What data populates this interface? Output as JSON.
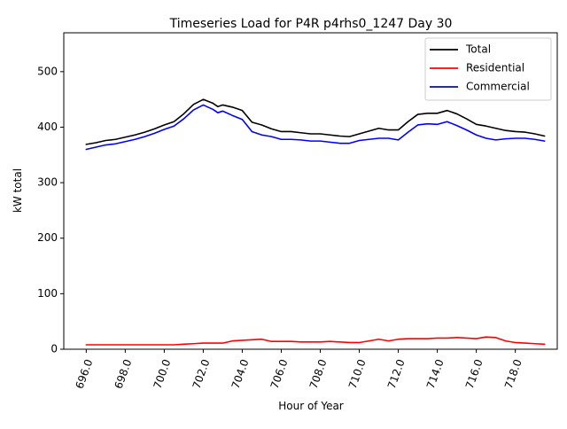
{
  "chart_data": {
    "type": "line",
    "title": "Timeseries Load for P4R p4rhs0_1247  Day 30",
    "xlabel": "Hour of Year",
    "ylabel": "kW total",
    "xlim": [
      694.85,
      720.15
    ],
    "ylim": [
      0,
      570
    ],
    "xticks": [
      696,
      698,
      700,
      702,
      704,
      706,
      708,
      710,
      712,
      714,
      716,
      718
    ],
    "xtick_labels": [
      "696.0",
      "698.0",
      "700.0",
      "702.0",
      "704.0",
      "706.0",
      "708.0",
      "710.0",
      "712.0",
      "714.0",
      "716.0",
      "718.0"
    ],
    "yticks": [
      0,
      100,
      200,
      300,
      400,
      500
    ],
    "ytick_labels": [
      "0",
      "100",
      "200",
      "300",
      "400",
      "500"
    ],
    "grid": false,
    "legend_position": "upper right",
    "x": [
      696.0,
      696.5,
      697.0,
      697.5,
      698.0,
      698.5,
      699.0,
      699.5,
      700.0,
      700.5,
      701.0,
      701.5,
      702.0,
      702.5,
      702.75,
      703.0,
      703.5,
      704.0,
      704.5,
      705.0,
      705.5,
      706.0,
      706.5,
      707.0,
      707.5,
      708.0,
      708.5,
      709.0,
      709.5,
      710.0,
      710.5,
      711.0,
      711.5,
      712.0,
      712.5,
      713.0,
      713.5,
      714.0,
      714.5,
      715.0,
      715.5,
      716.0,
      716.5,
      717.0,
      717.5,
      718.0,
      718.5,
      719.0,
      719.5
    ],
    "series": [
      {
        "name": "Total",
        "color": "#000000",
        "values": [
          369,
          372,
          376,
          378,
          382,
          386,
          391,
          397,
          404,
          410,
          424,
          441,
          450,
          443,
          437,
          440,
          436,
          430,
          409,
          404,
          397,
          392,
          392,
          390,
          388,
          388,
          386,
          384,
          383,
          388,
          393,
          398,
          395,
          395,
          410,
          423,
          425,
          425,
          430,
          424,
          415,
          405,
          402,
          398,
          394,
          392,
          391,
          388,
          384
        ]
      },
      {
        "name": "Residential",
        "color": "#ff0000",
        "values": [
          8,
          8,
          8,
          8,
          8,
          8,
          8,
          8,
          8,
          8,
          9,
          10,
          11,
          11,
          11,
          11,
          15,
          16,
          17,
          18,
          14,
          14,
          14,
          13,
          13,
          13,
          14,
          13,
          12,
          12,
          15,
          18,
          15,
          18,
          19,
          19,
          19,
          20,
          20,
          21,
          20,
          19,
          22,
          21,
          15,
          12,
          11,
          10,
          9
        ]
      },
      {
        "name": "Commercial",
        "color": "#0000ff",
        "values": [
          360,
          364,
          368,
          370,
          374,
          378,
          383,
          389,
          396,
          402,
          415,
          431,
          440,
          432,
          426,
          429,
          421,
          414,
          392,
          386,
          383,
          378,
          378,
          377,
          375,
          375,
          373,
          371,
          371,
          376,
          378,
          380,
          380,
          377,
          391,
          404,
          406,
          405,
          410,
          403,
          395,
          386,
          380,
          377,
          379,
          380,
          380,
          378,
          375
        ]
      }
    ]
  }
}
